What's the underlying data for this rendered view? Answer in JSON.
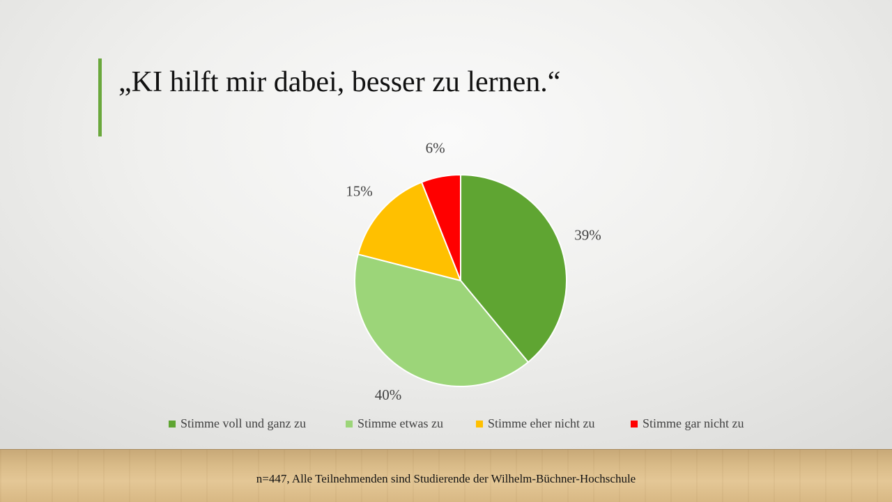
{
  "slide": {
    "title": "„KI hilft mir dabei, besser zu lernen.“",
    "footnote": "n=447, Alle Teilnehmenden sind Studierende  der Wilhelm-Büchner-Hochschule"
  },
  "chart_data": {
    "type": "pie",
    "title": "",
    "categories": [
      "Stimme voll und ganz zu",
      "Stimme etwas zu",
      "Stimme eher nicht zu",
      "Stimme gar nicht zu"
    ],
    "values": [
      39,
      40,
      15,
      6
    ],
    "value_labels": [
      "39%",
      "40%",
      "15%",
      "6%"
    ],
    "colors": [
      "#5fa532",
      "#9cd579",
      "#ffc000",
      "#ff0000"
    ],
    "legend_position": "bottom"
  }
}
